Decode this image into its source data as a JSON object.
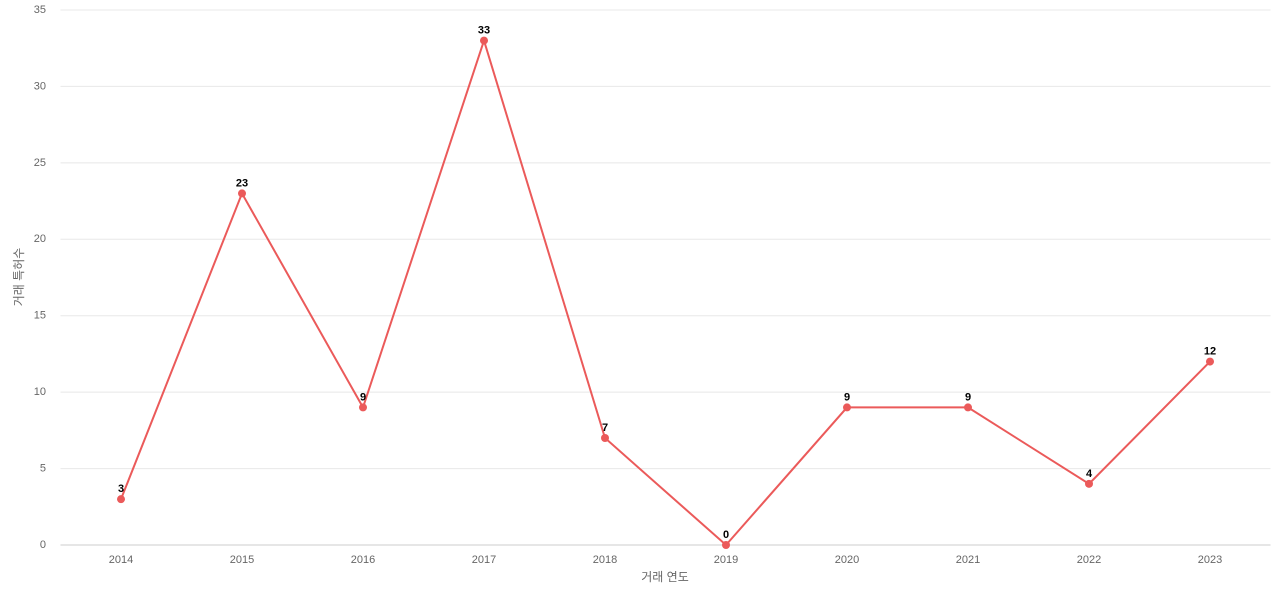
{
  "chart_data": {
    "type": "line",
    "x_label": "거래 연도",
    "y_label": "거래 특허수",
    "categories": [
      "2014",
      "2015",
      "2016",
      "2017",
      "2018",
      "2019",
      "2020",
      "2021",
      "2022",
      "2023"
    ],
    "series": [
      {
        "name": "거래 특허수",
        "color": "#eb5a5a",
        "values": [
          3,
          23,
          9,
          33,
          7,
          0,
          9,
          9,
          4,
          12
        ]
      }
    ],
    "ylim": [
      0,
      35
    ],
    "yticks": [
      0,
      5,
      10,
      15,
      20,
      25,
      30,
      35
    ],
    "grid": true
  }
}
